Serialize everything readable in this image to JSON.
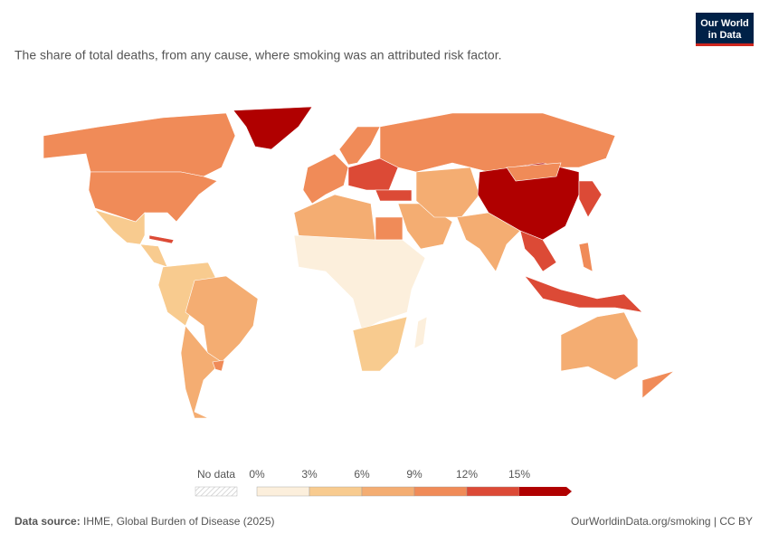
{
  "chart_data": {
    "type": "map",
    "subtitle": "The share of total deaths, from any cause, where smoking was an attributed risk factor.",
    "logo": [
      "Our World",
      "in Data"
    ],
    "values": [
      16,
      10,
      10,
      5,
      4,
      13,
      4,
      7,
      8,
      11,
      11,
      10,
      13,
      11,
      13,
      6,
      8,
      6,
      11,
      2,
      5,
      2,
      7,
      17,
      11,
      12,
      13,
      12,
      7,
      9,
      11
    ],
    "legend": {
      "no_data_label": "No data",
      "ticks": [
        {
          "value": 0,
          "label": "0%"
        },
        {
          "value": 3,
          "label": "3%"
        },
        {
          "value": 6,
          "label": "6%"
        },
        {
          "value": 9,
          "label": "9%"
        },
        {
          "value": 12,
          "label": "12%"
        },
        {
          "value": 15,
          "label": "15%"
        }
      ],
      "colors": [
        "#fcefdc",
        "#f8cb8f",
        "#f4ad72",
        "#f08b58",
        "#dc4a36",
        "#b00000"
      ]
    },
    "source_label": "Data source:",
    "source": "IHME, Global Burden of Disease (2025)",
    "credit": "OurWorldinData.org/smoking | CC BY"
  }
}
